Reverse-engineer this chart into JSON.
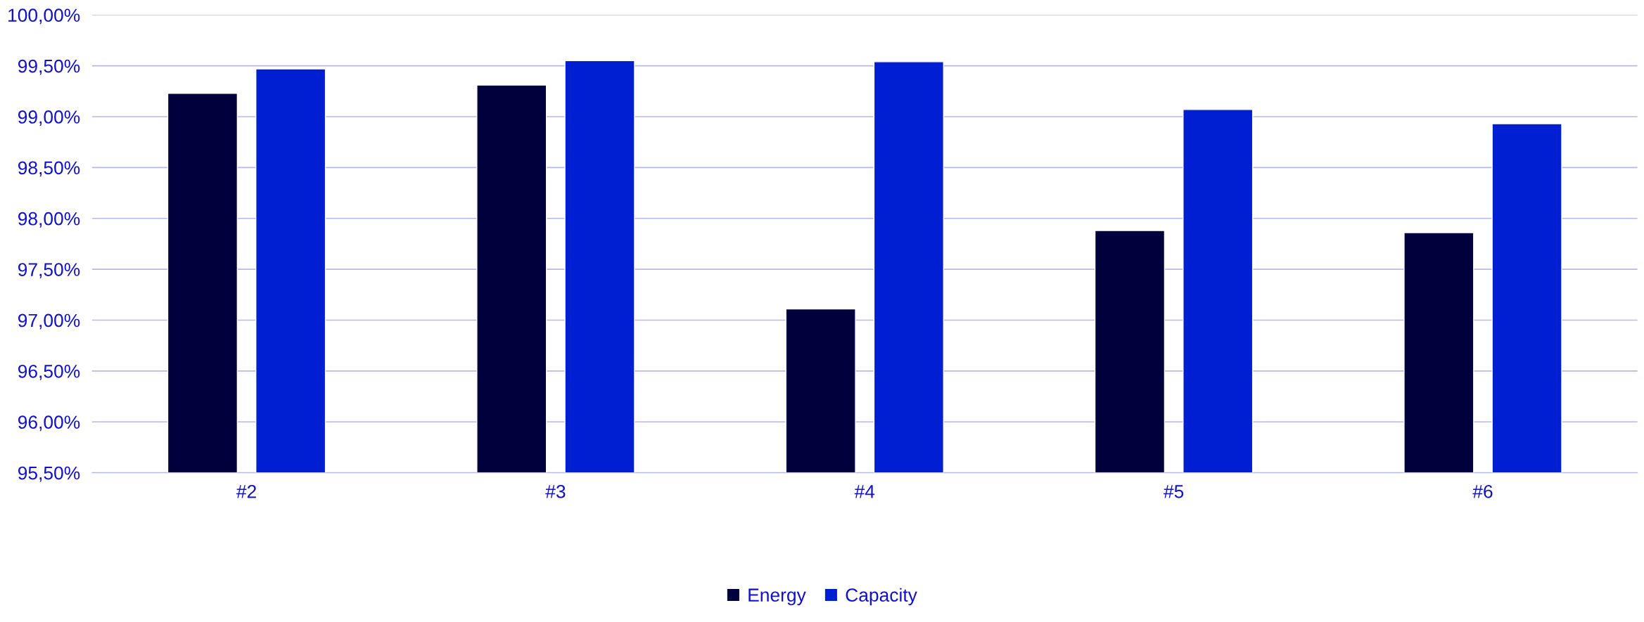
{
  "chart_data": {
    "type": "bar",
    "categories": [
      "#2",
      "#3",
      "#4",
      "#5",
      "#6"
    ],
    "series": [
      {
        "name": "Energy",
        "color": "#00003c",
        "values": [
          99.23,
          99.31,
          97.11,
          97.88,
          97.86
        ]
      },
      {
        "name": "Capacity",
        "color": "#001ed2",
        "values": [
          99.47,
          99.55,
          99.54,
          99.07,
          98.93
        ]
      }
    ],
    "ylim": [
      95.5,
      100
    ],
    "yticks": [
      {
        "value": 95.5,
        "label": "95,50%"
      },
      {
        "value": 96,
        "label": "96,00%"
      },
      {
        "value": 96.5,
        "label": "96,50%"
      },
      {
        "value": 97,
        "label": "97,00%"
      },
      {
        "value": 97.5,
        "label": "97,50%"
      },
      {
        "value": 98,
        "label": "98,00%"
      },
      {
        "value": 98.5,
        "label": "98,50%"
      },
      {
        "value": 99,
        "label": "99,00%"
      },
      {
        "value": 99.5,
        "label": "99,50%"
      },
      {
        "value": 100,
        "label": "100,00%"
      }
    ],
    "grid": "y",
    "legend": "bottom"
  }
}
